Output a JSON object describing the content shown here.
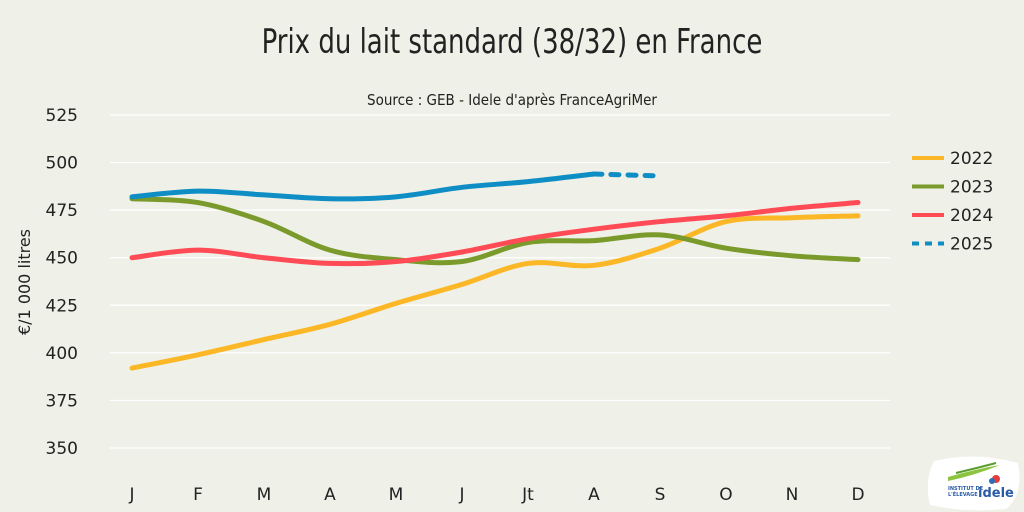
{
  "chart_data": {
    "type": "line",
    "title": "Prix du lait standard (38/32) en France",
    "subtitle": "Source : GEB - Idele d'après FranceAgriMer",
    "ylabel": "€/1 000 litres",
    "xlabel": "",
    "ylim": [
      350,
      525
    ],
    "yticks": [
      350,
      375,
      400,
      425,
      450,
      475,
      500,
      525
    ],
    "categories": [
      "J",
      "F",
      "M",
      "A",
      "M",
      "J",
      "Jt",
      "A",
      "S",
      "O",
      "N",
      "D"
    ],
    "grid": true,
    "legend": "right",
    "series": [
      {
        "name": "2022",
        "color": "#fbb726",
        "style": "solid",
        "values": [
          392,
          399,
          407,
          415,
          426,
          436,
          447,
          446,
          455,
          469,
          471,
          472
        ]
      },
      {
        "name": "2023",
        "color": "#7a9a2c",
        "style": "solid",
        "values": [
          481,
          479,
          469,
          454,
          449,
          448,
          458,
          459,
          462,
          455,
          451,
          449
        ]
      },
      {
        "name": "2024",
        "color": "#ff4b55",
        "style": "solid",
        "values": [
          450,
          454,
          450,
          447,
          448,
          453,
          460,
          465,
          469,
          472,
          476,
          479
        ]
      },
      {
        "name": "2025",
        "color": "#0e8ec5",
        "style": "solid",
        "values": [
          482,
          485,
          483,
          481,
          482,
          487,
          490,
          494,
          null,
          null,
          null,
          null
        ],
        "projection": {
          "style": "dashed",
          "values": [
            null,
            null,
            null,
            null,
            null,
            null,
            null,
            494,
            493,
            null,
            null,
            null
          ]
        }
      }
    ]
  },
  "logo": {
    "text1": "INSTITUT DE L'ÉLEVAGE",
    "text2": "idele"
  }
}
